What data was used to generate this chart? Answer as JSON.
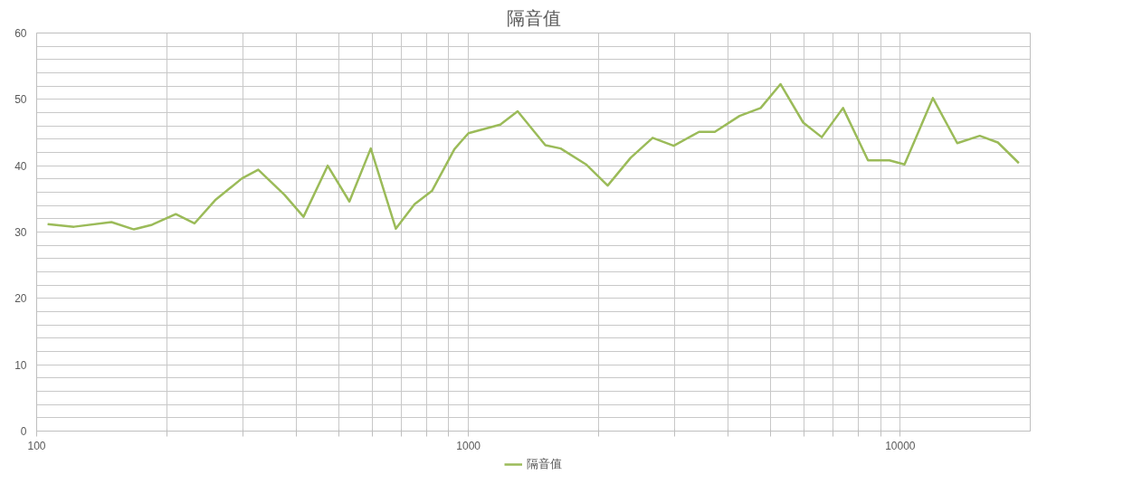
{
  "chart_data": {
    "type": "line",
    "title": "隔音值",
    "x": [
      106,
      122,
      149,
      168,
      185,
      210,
      232,
      259,
      299,
      326,
      375,
      415,
      472,
      530,
      594,
      679,
      750,
      823,
      928,
      1000,
      1185,
      1300,
      1507,
      1635,
      1872,
      2101,
      2375,
      2670,
      2988,
      3420,
      3720,
      4245,
      4750,
      5280,
      5960,
      6580,
      7370,
      8420,
      9440,
      10230,
      11900,
      13550,
      15280,
      16830,
      18820
    ],
    "series": [
      {
        "name": "隔音值",
        "color": "#9bbb59",
        "values": [
          31.2,
          30.8,
          31.5,
          30.4,
          31.1,
          32.7,
          31.3,
          34.8,
          38.1,
          39.4,
          35.6,
          32.3,
          40.0,
          34.6,
          42.6,
          30.5,
          34.2,
          36.2,
          42.5,
          44.9,
          46.2,
          48.2,
          43.1,
          42.6,
          40.2,
          37.0,
          41.2,
          44.2,
          43.0,
          45.1,
          45.1,
          47.5,
          48.7,
          52.3,
          46.5,
          44.3,
          48.7,
          40.8,
          40.8,
          40.2,
          50.2,
          43.4,
          44.5,
          43.5,
          40.4
        ]
      }
    ],
    "log": "x",
    "xlim": [
      100,
      20000
    ],
    "xticks": [
      100,
      {
        "value": 200,
        "label": null
      },
      {
        "value": 300,
        "label": null
      },
      {
        "value": 400,
        "label": null
      },
      {
        "value": 500,
        "label": null
      },
      {
        "value": 600,
        "label": null
      },
      {
        "value": 700,
        "label": null
      },
      {
        "value": 800,
        "label": null
      },
      {
        "value": 900,
        "label": null
      },
      1000,
      {
        "value": 2000,
        "label": null
      },
      {
        "value": 3000,
        "label": null
      },
      {
        "value": 4000,
        "label": null
      },
      {
        "value": 5000,
        "label": null
      },
      {
        "value": 6000,
        "label": null
      },
      {
        "value": 7000,
        "label": null
      },
      {
        "value": 8000,
        "label": null
      },
      {
        "value": 9000,
        "label": null
      },
      10000
    ],
    "ylim": [
      0,
      60
    ],
    "yticks": [
      0,
      {
        "value": 2,
        "label": null
      },
      {
        "value": 4,
        "label": null
      },
      {
        "value": 6,
        "label": null
      },
      {
        "value": 8,
        "label": null
      },
      10,
      {
        "value": 12,
        "label": null
      },
      {
        "value": 14,
        "label": null
      },
      {
        "value": 16,
        "label": null
      },
      {
        "value": 18,
        "label": null
      },
      20,
      {
        "value": 22,
        "label": null
      },
      {
        "value": 24,
        "label": null
      },
      {
        "value": 26,
        "label": null
      },
      {
        "value": 28,
        "label": null
      },
      30,
      {
        "value": 32,
        "label": null
      },
      {
        "value": 34,
        "label": null
      },
      {
        "value": 36,
        "label": null
      },
      {
        "value": 38,
        "label": null
      },
      40,
      {
        "value": 42,
        "label": null
      },
      {
        "value": 44,
        "label": null
      },
      {
        "value": 46,
        "label": null
      },
      {
        "value": 48,
        "label": null
      },
      50,
      {
        "value": 52,
        "label": null
      },
      {
        "value": 54,
        "label": null
      },
      {
        "value": 56,
        "label": null
      },
      {
        "value": 58,
        "label": null
      },
      60
    ],
    "grid": true,
    "legend": "bottom",
    "marker": "none",
    "line_style": "solid"
  }
}
